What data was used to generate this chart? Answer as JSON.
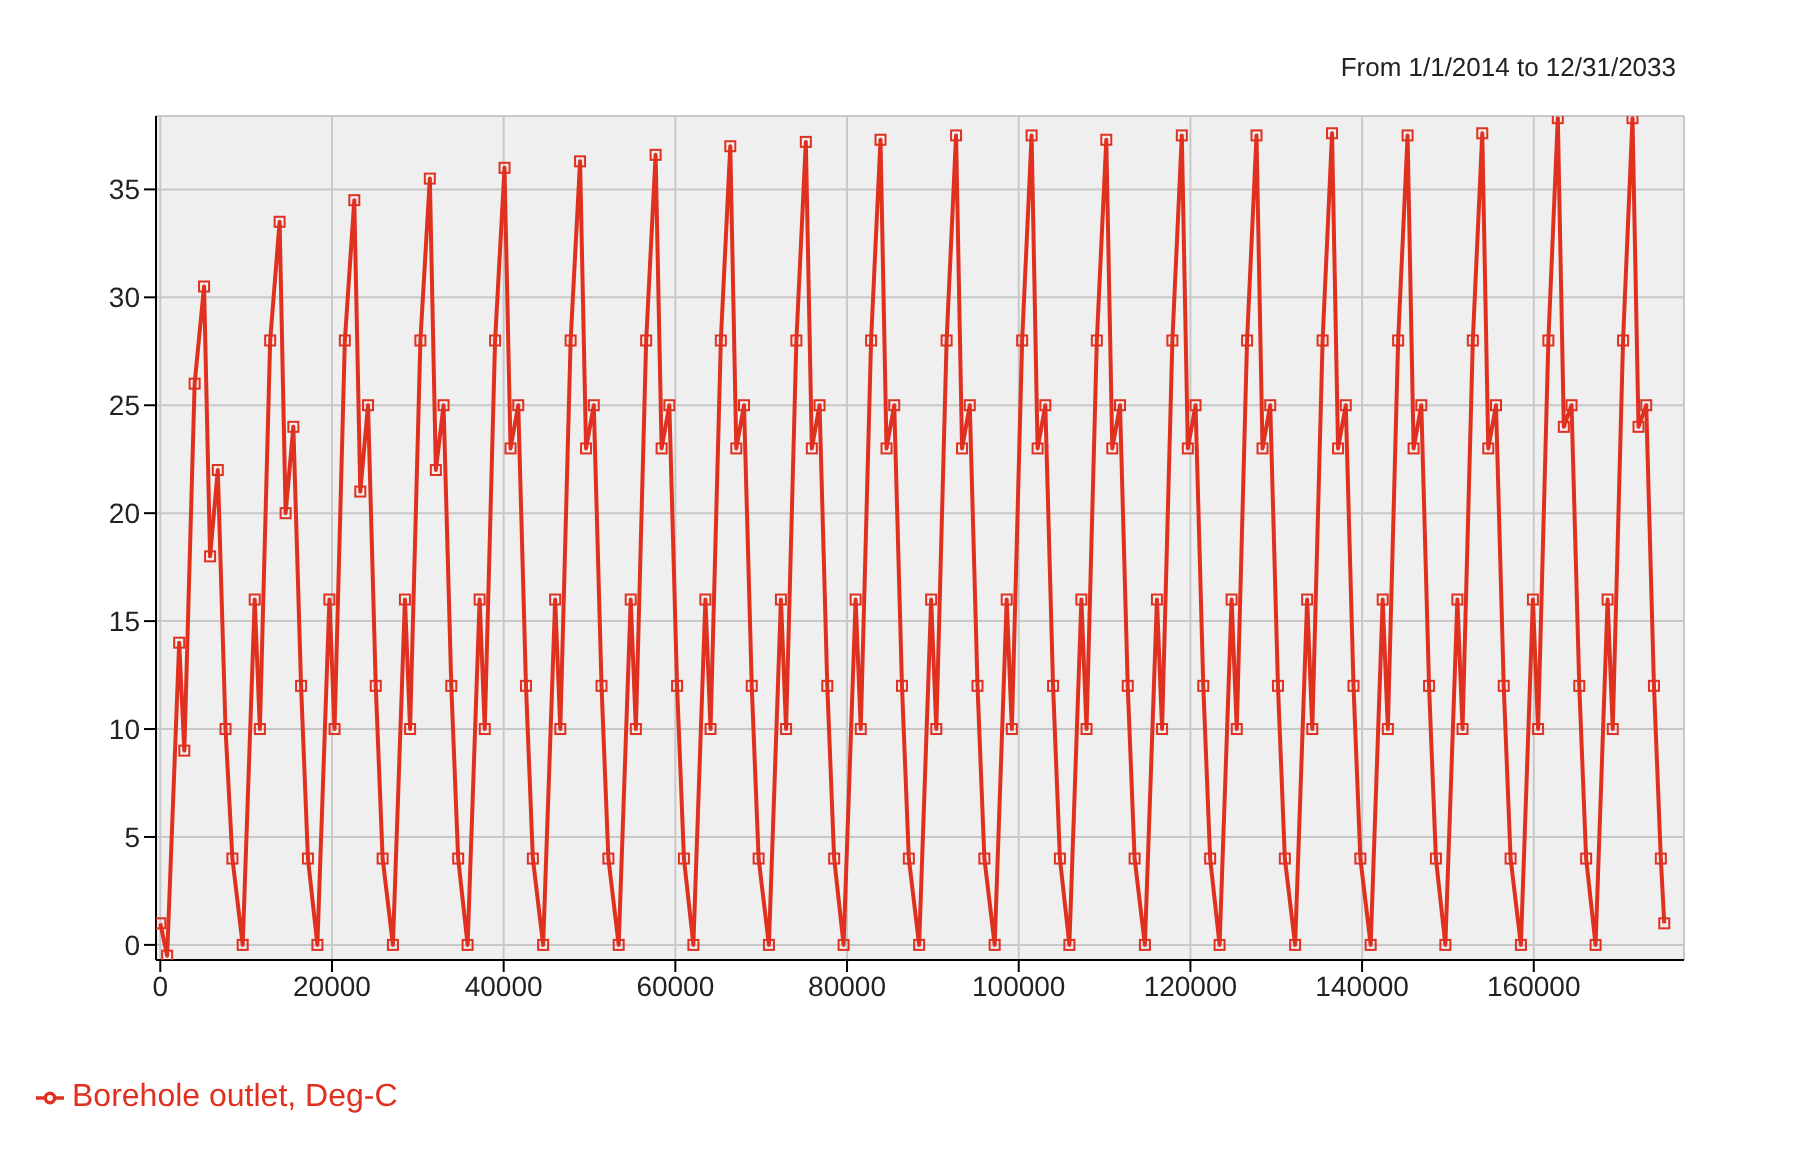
{
  "chart_data": {
    "type": "line",
    "subtitle": "From 1/1/2014 to 12/31/2033",
    "xlim": [
      -500,
      177500
    ],
    "xticks": [
      0,
      20000,
      40000,
      60000,
      80000,
      100000,
      120000,
      140000,
      160000
    ],
    "ylim": [
      -0.7,
      38.4
    ],
    "yticks": [
      0,
      5,
      10,
      15,
      20,
      25,
      30,
      35
    ],
    "grid": true,
    "legend": "bottom left",
    "marker": "square",
    "line_style": "solid",
    "x": [
      0,
      800,
      2200,
      2800,
      4000,
      5100,
      5800,
      6700,
      7600,
      8400,
      9600,
      11000,
      11600,
      12800,
      13900,
      14600,
      15500,
      16400,
      17200,
      18300,
      19700,
      20300,
      21500,
      22600,
      23300,
      24200,
      25100,
      25900,
      27100,
      28500,
      29100,
      30300,
      31400,
      32100,
      33000,
      33900,
      34700,
      35800,
      37200,
      37800,
      39000,
      40100,
      40800,
      41700,
      42600,
      43400,
      44600,
      46000,
      46600,
      47800,
      48900,
      49600,
      50500,
      51400,
      52200,
      53400,
      54800,
      55400,
      56600,
      57700,
      58400,
      59300,
      60200,
      61000,
      62100,
      63500,
      64100,
      65300,
      66400,
      67100,
      68000,
      68900,
      69700,
      70900,
      72300,
      72900,
      74100,
      75200,
      75900,
      76800,
      77700,
      78500,
      79600,
      81000,
      81600,
      82800,
      83900,
      84600,
      85500,
      86400,
      87200,
      88400,
      89800,
      90400,
      91600,
      92700,
      93400,
      94300,
      95200,
      96000,
      97200,
      98600,
      99200,
      100400,
      101500,
      102200,
      103100,
      104000,
      104800,
      105900,
      107300,
      107900,
      109100,
      110200,
      110900,
      111800,
      112700,
      113500,
      114700,
      116100,
      116700,
      117900,
      119000,
      119700,
      120600,
      121500,
      122300,
      123400,
      124800,
      125400,
      126600,
      127700,
      128400,
      129300,
      130200,
      131000,
      132200,
      133600,
      134200,
      135400,
      136500,
      137200,
      138100,
      139000,
      139800,
      141000,
      142400,
      143000,
      144200,
      145300,
      146000,
      146900,
      147800,
      148600,
      149700,
      151100,
      151700,
      152900,
      154000,
      154700,
      155600,
      156500,
      157300,
      158500,
      159900,
      160500,
      161700,
      162800,
      163500,
      164400,
      165300,
      166100,
      167200,
      168600,
      169200,
      170400,
      171500,
      172200,
      173100,
      174000,
      174800,
      175200
    ],
    "series": [
      {
        "name": "Borehole outlet, Deg-C",
        "color": "#e03020",
        "values": [
          1,
          -0.5,
          14,
          9,
          26,
          30.5,
          18,
          22,
          10,
          4,
          0,
          16,
          10,
          28,
          33.5,
          20,
          24,
          12,
          4,
          0,
          16,
          10,
          28,
          34.5,
          21,
          25,
          12,
          4,
          0,
          16,
          10,
          28,
          35.5,
          22,
          25,
          12,
          4,
          0,
          16,
          10,
          28,
          36,
          23,
          25,
          12,
          4,
          0,
          16,
          10,
          28,
          36.3,
          23,
          25,
          12,
          4,
          0,
          16,
          10,
          28,
          36.6,
          23,
          25,
          12,
          4,
          0,
          16,
          10,
          28,
          37,
          23,
          25,
          12,
          4,
          0,
          16,
          10,
          28,
          37.2,
          23,
          25,
          12,
          4,
          0,
          16,
          10,
          28,
          37.3,
          23,
          25,
          12,
          4,
          0,
          16,
          10,
          28,
          37.5,
          23,
          25,
          12,
          4,
          0,
          16,
          10,
          28,
          37.5,
          23,
          25,
          12,
          4,
          0,
          16,
          10,
          28,
          37.3,
          23,
          25,
          12,
          4,
          0,
          16,
          10,
          28,
          37.5,
          23,
          25,
          12,
          4,
          0,
          16,
          10,
          28,
          37.5,
          23,
          25,
          12,
          4,
          0,
          16,
          10,
          28,
          37.6,
          23,
          25,
          12,
          4,
          0,
          16,
          10,
          28,
          37.5,
          23,
          25,
          12,
          4,
          0,
          16,
          10,
          28,
          37.6,
          23,
          25,
          12,
          4,
          0,
          16,
          10,
          28,
          38.3,
          24,
          25,
          12,
          4,
          0,
          16,
          10,
          28,
          38.3,
          24,
          25,
          12,
          4,
          1
        ]
      }
    ]
  }
}
